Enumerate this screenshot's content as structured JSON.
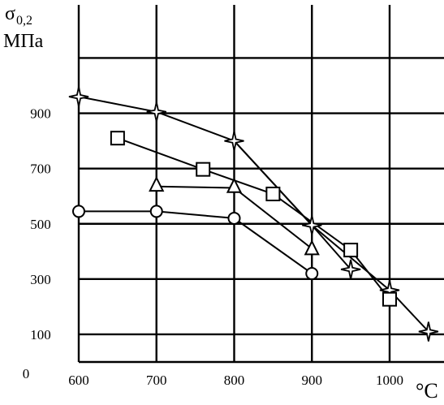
{
  "chart_data": {
    "type": "line",
    "ylabel_symbol": "σ",
    "ylabel_subscript": "0,2",
    "ylabel_unit": "МПа",
    "xlabel": "°C",
    "xlim": [
      600,
      1090
    ],
    "ylim": [
      0,
      1200
    ],
    "x_ticks": [
      {
        "value": 600,
        "label": "600"
      },
      {
        "value": 700,
        "label": "700"
      },
      {
        "value": 800,
        "label": "800"
      },
      {
        "value": 900,
        "label": "900"
      },
      {
        "value": 1000,
        "label": "1000"
      }
    ],
    "y_ticks": [
      {
        "value": 0,
        "label": "0"
      },
      {
        "value": 100,
        "label": "100"
      },
      {
        "value": 300,
        "label": "300"
      },
      {
        "value": 500,
        "label": "500"
      },
      {
        "value": 700,
        "label": "700"
      },
      {
        "value": 900,
        "label": "900"
      }
    ],
    "x_gridlines": [
      700,
      800,
      900,
      1000
    ],
    "y_gridlines": [
      100,
      300,
      500,
      700,
      900,
      1100
    ],
    "grid": true,
    "series": [
      {
        "marker": "star",
        "points": [
          [
            600,
            960
          ],
          [
            700,
            905
          ],
          [
            800,
            800
          ],
          [
            900,
            495
          ],
          [
            950,
            335
          ],
          [
            1000,
            260
          ],
          [
            1050,
            110
          ]
        ],
        "segments": [
          [
            [
              600,
              960
            ],
            [
              700,
              905
            ],
            [
              800,
              800
            ],
            [
              900,
              495
            ],
            [
              950,
              335
            ]
          ],
          [
            [
              800,
              800
            ],
            [
              900,
              495
            ],
            [
              1000,
              260
            ],
            [
              1050,
              110
            ]
          ]
        ]
      },
      {
        "marker": "square",
        "points": [
          [
            650,
            810
          ],
          [
            760,
            697
          ],
          [
            850,
            608
          ],
          [
            950,
            405
          ],
          [
            1000,
            227
          ]
        ],
        "segments": [
          [
            [
              650,
              810
            ],
            [
              760,
              697
            ],
            [
              850,
              608
            ],
            [
              950,
              405
            ],
            [
              1000,
              227
            ]
          ]
        ]
      },
      {
        "marker": "triangle",
        "points": [
          [
            700,
            640
          ],
          [
            800,
            635
          ],
          [
            900,
            410
          ]
        ],
        "segments": [
          [
            [
              700,
              635
            ],
            [
              800,
              630
            ],
            [
              900,
              410
            ]
          ]
        ]
      },
      {
        "marker": "circle",
        "points": [
          [
            600,
            545
          ],
          [
            700,
            545
          ],
          [
            800,
            520
          ],
          [
            900,
            320
          ]
        ],
        "segments": [
          [
            [
              600,
              545
            ],
            [
              700,
              545
            ],
            [
              800,
              520
            ],
            [
              900,
              320
            ]
          ]
        ]
      }
    ]
  }
}
